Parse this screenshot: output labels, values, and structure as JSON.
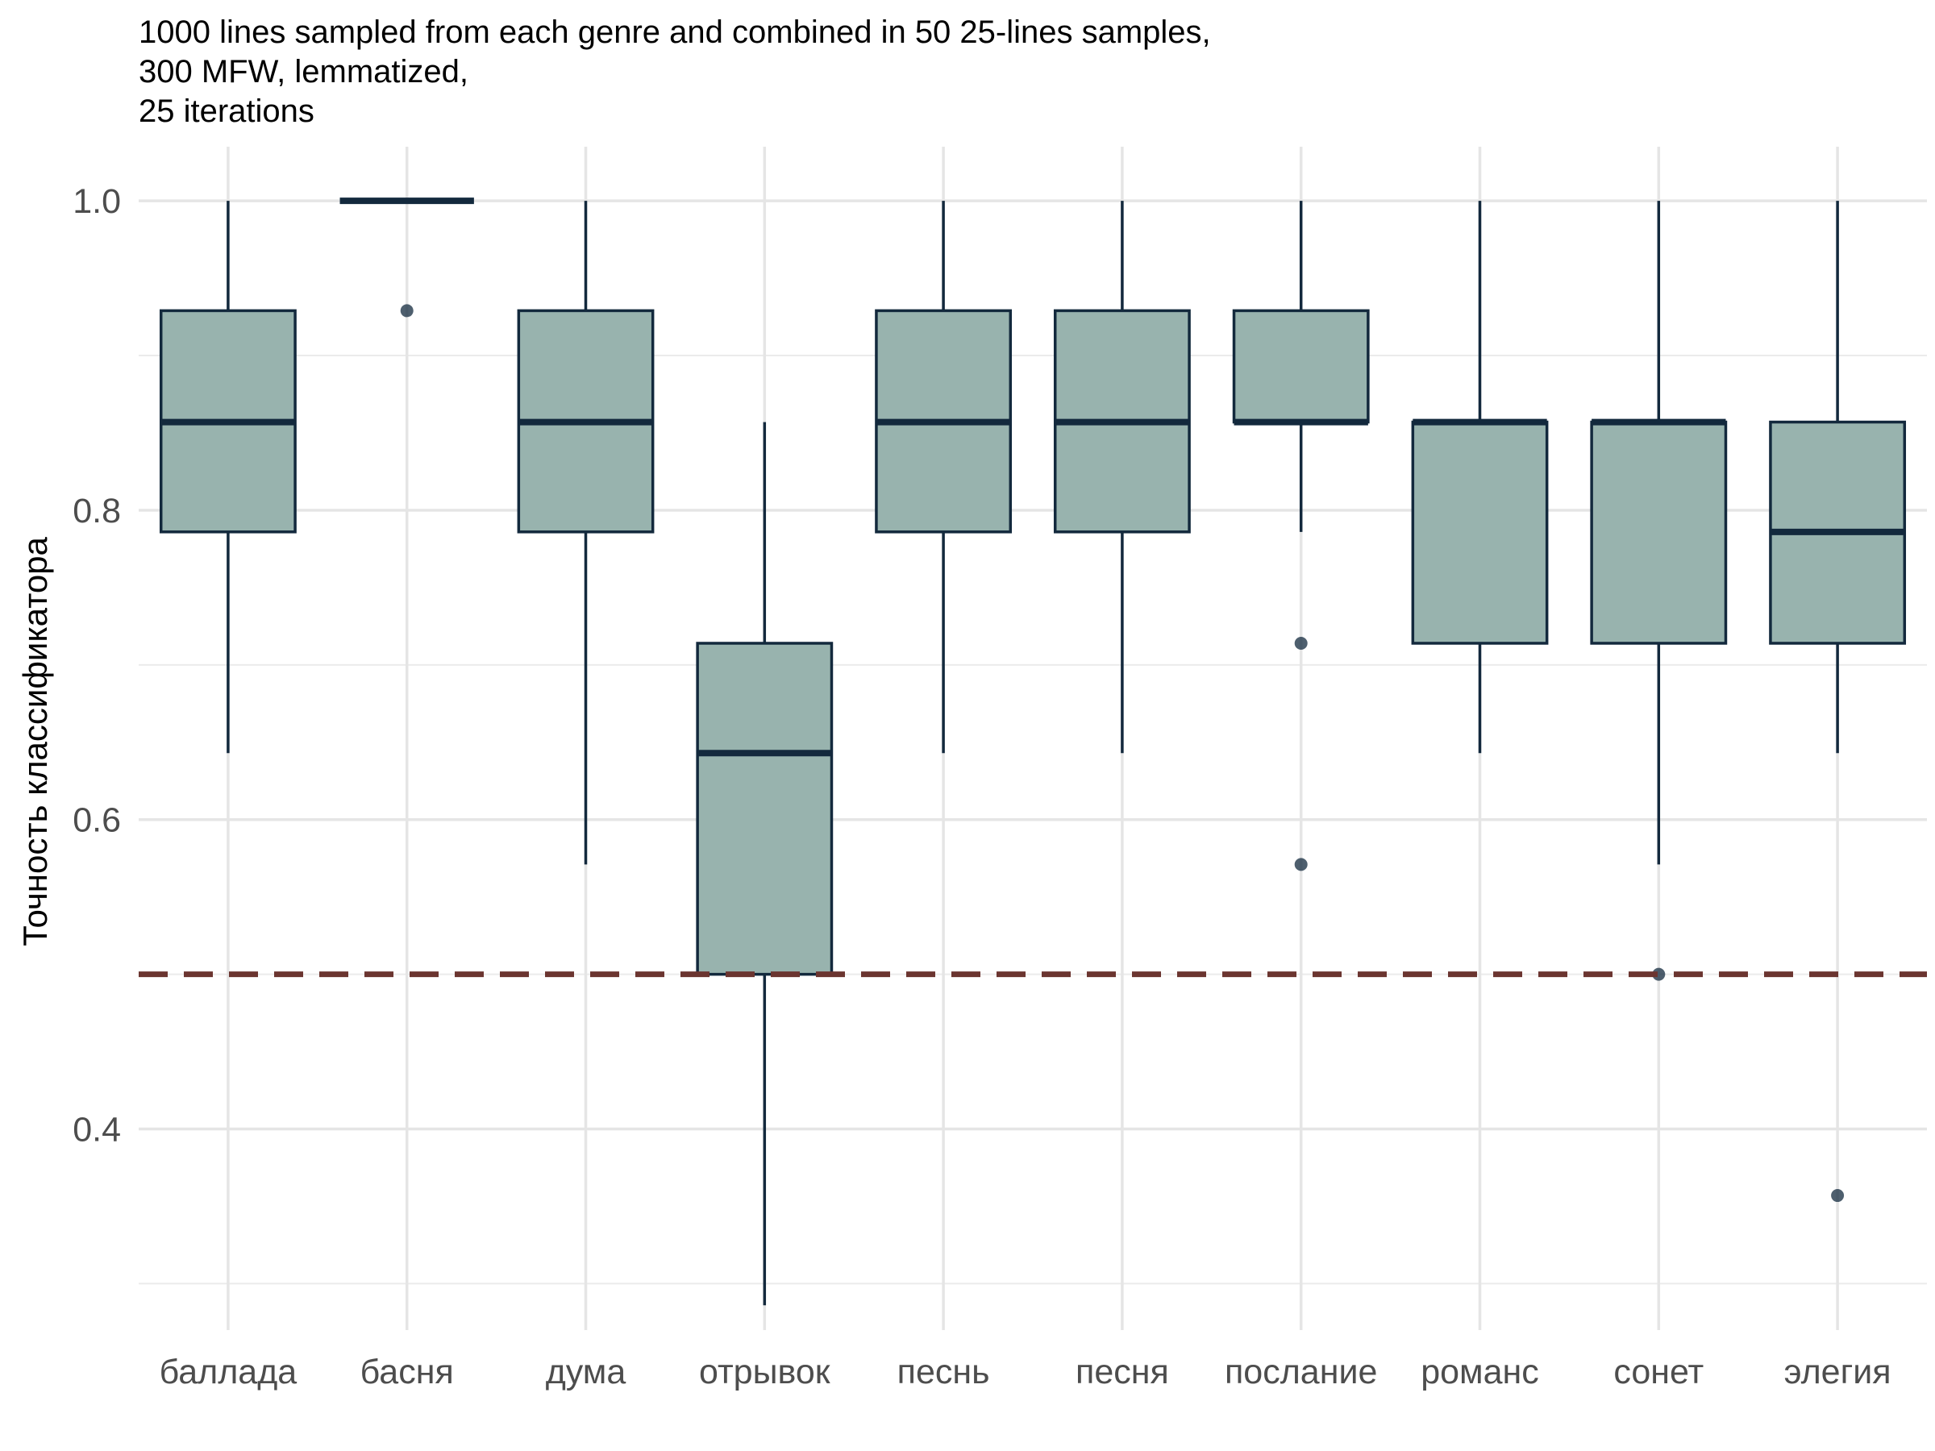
{
  "chart_data": {
    "type": "box",
    "title_lines": [
      "1000 lines sampled from each genre and combined in 50 25-lines samples,",
      "300 MFW, lemmatized,",
      "25 iterations"
    ],
    "xlabel": "",
    "ylabel": "Точность классификатора",
    "ylim": [
      0.27,
      1.035
    ],
    "yticks": [
      0.4,
      0.6,
      0.8,
      1.0
    ],
    "ytick_labels": [
      "0.4",
      "0.6",
      "0.8",
      "1.0"
    ],
    "grid": true,
    "reference_line": {
      "y": 0.5,
      "style": "dashed",
      "color": "#6b3530"
    },
    "colors": {
      "box_fill": "#98b3ae",
      "box_stroke": "#13293d",
      "outlier": "#13293d"
    },
    "categories": [
      "баллада",
      "басня",
      "дума",
      "отрывок",
      "песнь",
      "песня",
      "послание",
      "романс",
      "сонет",
      "элегия"
    ],
    "boxes": [
      {
        "category": "баллада",
        "min": 0.643,
        "q1": 0.786,
        "median": 0.857,
        "q3": 0.929,
        "max": 1.0,
        "outliers": []
      },
      {
        "category": "басня",
        "min": 1.0,
        "q1": 1.0,
        "median": 1.0,
        "q3": 1.0,
        "max": 1.0,
        "outliers": [
          0.929
        ]
      },
      {
        "category": "дума",
        "min": 0.571,
        "q1": 0.786,
        "median": 0.857,
        "q3": 0.929,
        "max": 1.0,
        "outliers": []
      },
      {
        "category": "отрывок",
        "min": 0.286,
        "q1": 0.5,
        "median": 0.643,
        "q3": 0.714,
        "max": 0.857,
        "outliers": []
      },
      {
        "category": "песнь",
        "min": 0.643,
        "q1": 0.786,
        "median": 0.857,
        "q3": 0.929,
        "max": 1.0,
        "outliers": []
      },
      {
        "category": "песня",
        "min": 0.643,
        "q1": 0.786,
        "median": 0.857,
        "q3": 0.929,
        "max": 1.0,
        "outliers": []
      },
      {
        "category": "послание",
        "min": 0.786,
        "q1": 0.857,
        "median": 0.857,
        "q3": 0.929,
        "max": 1.0,
        "outliers": [
          0.714,
          0.571
        ]
      },
      {
        "category": "романс",
        "min": 0.643,
        "q1": 0.714,
        "median": 0.857,
        "q3": 0.857,
        "max": 1.0,
        "outliers": []
      },
      {
        "category": "сонет",
        "min": 0.571,
        "q1": 0.714,
        "median": 0.857,
        "q3": 0.857,
        "max": 1.0,
        "outliers": [
          0.5
        ]
      },
      {
        "category": "элегия",
        "min": 0.643,
        "q1": 0.714,
        "median": 0.786,
        "q3": 0.857,
        "max": 1.0,
        "outliers": [
          0.357
        ]
      }
    ]
  }
}
